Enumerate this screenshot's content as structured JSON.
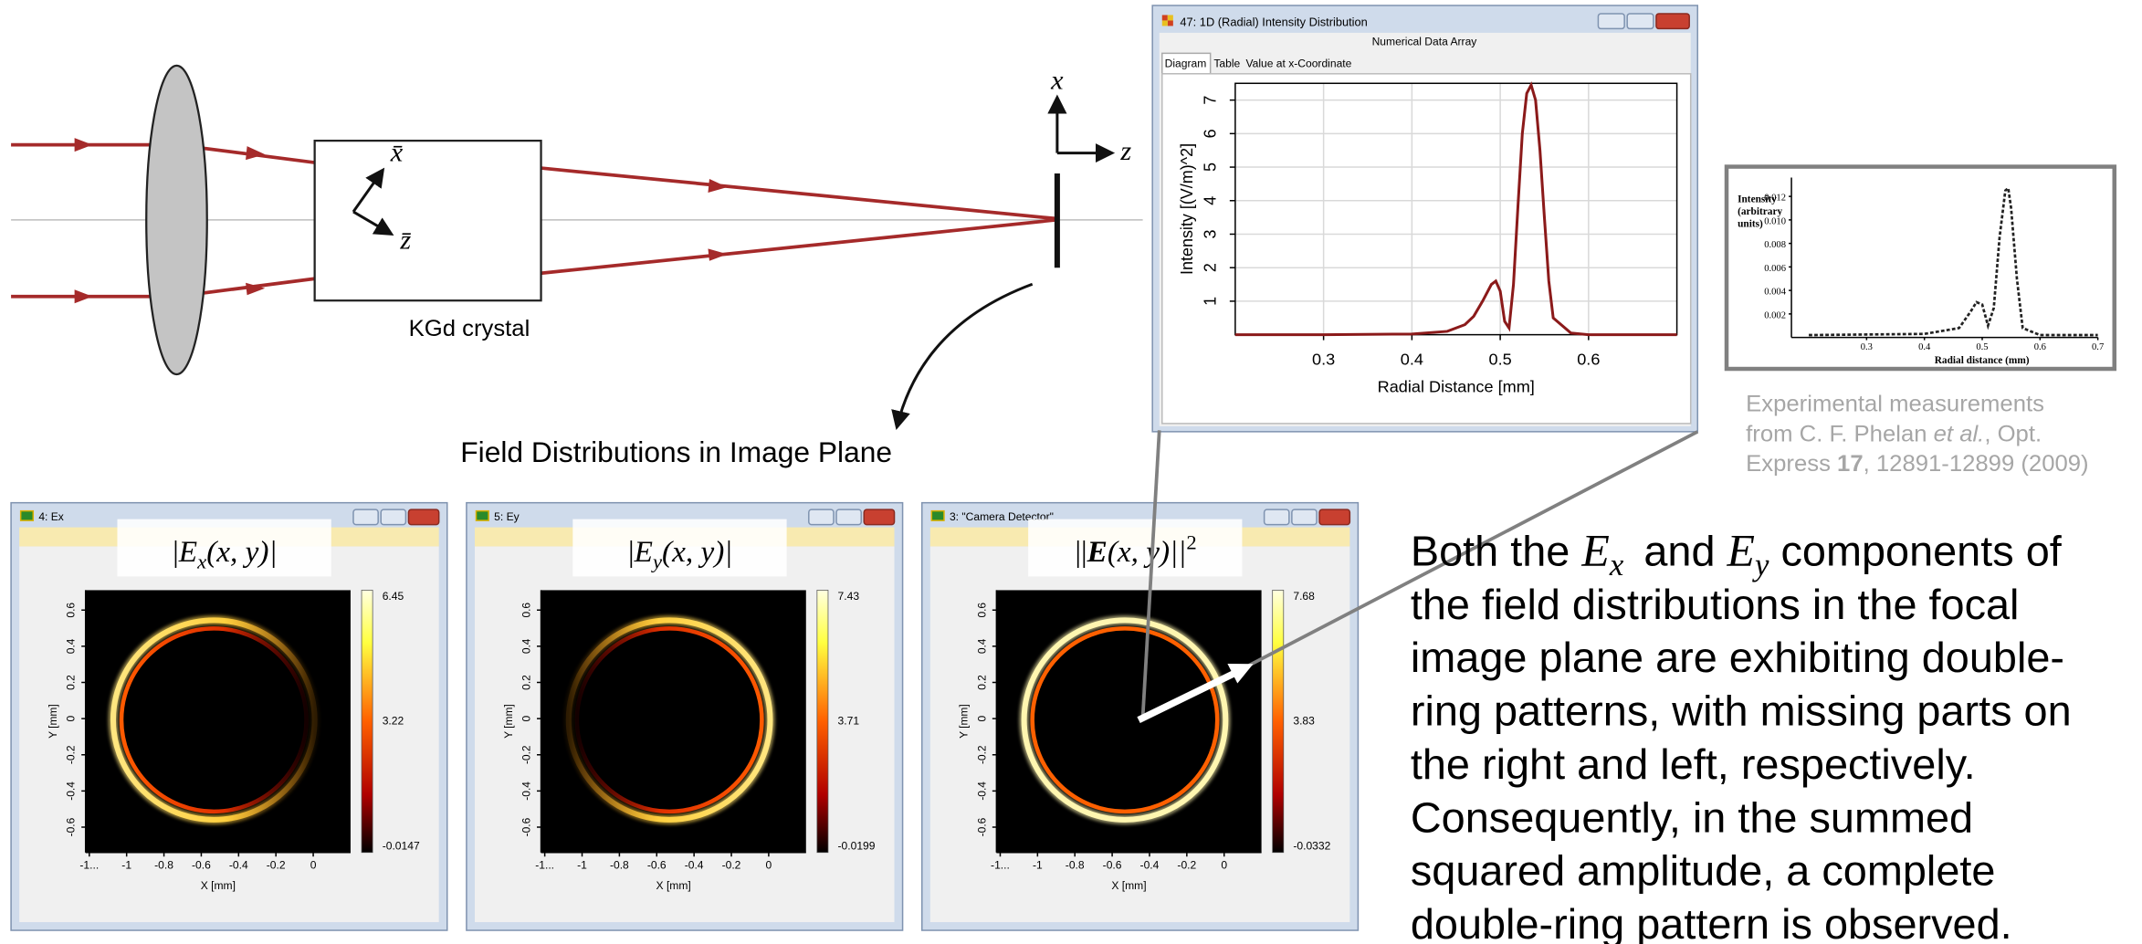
{
  "setup": {
    "crystal_label": "KGd crystal",
    "crystal_axis_x": "x̄",
    "crystal_axis_z": "z̄",
    "axis_x": "x",
    "axis_z": "z",
    "caption": "Field Distributions in Image Plane"
  },
  "intensity_window": {
    "title": "47: 1D (Radial) Intensity Distribution",
    "subtitle": "Numerical Data Array",
    "tabs": [
      "Diagram",
      "Table",
      "Value at x-Coordinate"
    ],
    "chart": {
      "type": "line",
      "x_label": "Radial Distance [mm]",
      "y_label": "Intensity [(V/m)^2]",
      "color": "#8b1a1a",
      "x": [
        0.2,
        0.3,
        0.4,
        0.44,
        0.46,
        0.47,
        0.48,
        0.49,
        0.495,
        0.5,
        0.505,
        0.51,
        0.515,
        0.52,
        0.525,
        0.53,
        0.535,
        0.54,
        0.545,
        0.55,
        0.555,
        0.56,
        0.58,
        0.6,
        0.7
      ],
      "values": [
        0,
        0,
        0.02,
        0.1,
        0.3,
        0.55,
        1.0,
        1.5,
        1.6,
        1.3,
        0.4,
        0.2,
        1.5,
        3.8,
        6.0,
        7.2,
        7.45,
        7.0,
        5.5,
        3.5,
        1.6,
        0.5,
        0.05,
        0,
        0
      ],
      "xlim": [
        0.2,
        0.7
      ],
      "ylim": [
        0,
        7.5
      ],
      "xticks": [
        0.3,
        0.4,
        0.5,
        0.6
      ],
      "yticks": [
        1,
        2,
        3,
        4,
        5,
        6,
        7
      ],
      "grid": true
    }
  },
  "experiment": {
    "chart": {
      "type": "line",
      "x_label": "Radial distance (mm)",
      "y_label": [
        "Intensity",
        "(arbitrary",
        "units)"
      ],
      "color": "#222222",
      "dashed": true,
      "x": [
        0.2,
        0.4,
        0.46,
        0.48,
        0.49,
        0.5,
        0.51,
        0.52,
        0.53,
        0.54,
        0.545,
        0.55,
        0.56,
        0.57,
        0.6,
        0.7
      ],
      "values": [
        0.0002,
        0.0003,
        0.0008,
        0.0022,
        0.003,
        0.0028,
        0.001,
        0.0025,
        0.0085,
        0.0125,
        0.0127,
        0.011,
        0.005,
        0.0008,
        0.0002,
        0.0002
      ],
      "xlim": [
        0.17,
        0.7
      ],
      "ylim": [
        0,
        0.0136
      ],
      "xticks": [
        0.3,
        0.4,
        0.5,
        0.6,
        0.7
      ],
      "yticks": [
        0.002,
        0.004,
        0.006,
        0.008,
        {
          "value": 0.01,
          "label": "0.010"
        },
        0.012
      ],
      "grid": false
    },
    "citation": [
      "Experimental measurements",
      "from C. F. Phelan ",
      "et al.",
      ", Opt.",
      "Express ",
      "17",
      ", 12891-12899 (2009)"
    ]
  },
  "field_windows": [
    {
      "title": "4: Ex",
      "label": {
        "open": "|",
        "var": "E",
        "sub": "x",
        "close": "(x, y)|"
      },
      "colorbar_ticks": [
        6.45,
        3.22,
        -0.0147
      ],
      "x_label": "X [mm]",
      "y_label": "Y [mm]",
      "xlim": [
        -1.22,
        0.2
      ],
      "ylim": [
        -0.74,
        0.71
      ],
      "xticks": [
        {
          "value": -1.2,
          "label": "-1..."
        },
        -1,
        -0.8,
        -0.6,
        -0.4,
        -0.2,
        0
      ],
      "yticks": [
        -0.6,
        -0.4,
        -0.2,
        0,
        0.2,
        0.4,
        0.6
      ]
    },
    {
      "title": "5: Ey",
      "label": {
        "open": "|",
        "var": "E",
        "sub": "y",
        "close": "(x, y)|"
      },
      "colorbar_ticks": [
        7.43,
        3.71,
        -0.0199
      ],
      "x_label": "X [mm]",
      "y_label": "Y [mm]",
      "xlim": [
        -1.22,
        0.2
      ],
      "ylim": [
        -0.74,
        0.71
      ],
      "xticks": [
        {
          "value": -1.2,
          "label": "-1..."
        },
        -1,
        -0.8,
        -0.6,
        -0.4,
        -0.2,
        0
      ],
      "yticks": [
        -0.6,
        -0.4,
        -0.2,
        0,
        0.2,
        0.4,
        0.6
      ]
    },
    {
      "title": "3: \"Camera Detector\"",
      "label": {
        "open": "||",
        "var": "E",
        "close": "(x, y)||",
        "sup": "2",
        "bold": true
      },
      "colorbar_ticks": [
        7.68,
        3.83,
        -0.0332
      ],
      "x_label": "X [mm]",
      "y_label": "Y [mm]",
      "xlim": [
        -1.22,
        0.2
      ],
      "ylim": [
        -0.74,
        0.71
      ],
      "xticks": [
        {
          "value": -1.2,
          "label": "-1..."
        },
        -1,
        -0.8,
        -0.6,
        -0.4,
        -0.2,
        0
      ],
      "yticks": [
        -0.6,
        -0.4,
        -0.2,
        0,
        0.2,
        0.4,
        0.6
      ]
    }
  ],
  "description": {
    "first_line": [
      "Both the ",
      "E",
      "x",
      " and ",
      "E",
      "y",
      " components of"
    ],
    "lines": [
      "the field distributions in the focal",
      "image plane are exhibiting double-",
      "ring patterns, with missing parts on",
      "the right and left, respectively.",
      "Consequently, in the summed",
      "squared amplitude, a complete",
      "double-ring pattern is observed."
    ]
  }
}
